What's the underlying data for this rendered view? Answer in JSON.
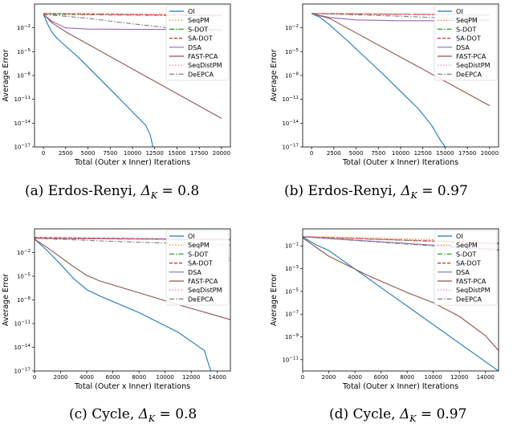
{
  "colors": {
    "OI": "#1f77b4",
    "SeqPM": "#ff7f0e",
    "S-DOT": "#2ca02c",
    "SA-DOT": "#d62728",
    "DSA": "#9467bd",
    "FAST-PCA": "#8c564b",
    "SeqDistPM": "#e377c2",
    "DeEPCA": "#7f7f7f"
  },
  "chart_data": [
    {
      "type": "line",
      "caption_text": "(a) Erdos-Renyi, ",
      "caption_delta": "0.8",
      "xlabel": "Total (Outer x Inner) Iterations",
      "ylabel": "Average Error",
      "yscale": "log",
      "xlim": [
        -1000,
        21000
      ],
      "ylim_exp": [
        -17,
        1
      ],
      "xticks": [
        0,
        2500,
        5000,
        7500,
        10000,
        12500,
        15000,
        17500,
        20000
      ],
      "yticks": [
        "10^-2",
        "10^-5",
        "10^-8",
        "10^-11",
        "10^-14",
        "10^-17"
      ],
      "legend": [
        "OI",
        "SeqPM",
        "S-DOT",
        "SA-DOT",
        "DSA",
        "FAST-PCA",
        "SeqDistPM",
        "DeEPCA"
      ],
      "series": [
        {
          "name": "OI",
          "x": [
            0,
            500,
            1000,
            1500,
            2000,
            4000,
            8000,
            11500,
            12000,
            12300
          ],
          "y": [
            -0.3,
            -1.6,
            -2.6,
            -3.3,
            -3.8,
            -5.8,
            -10.3,
            -14.3,
            -15.5,
            -17
          ]
        },
        {
          "name": "SeqPM",
          "x": [
            0,
            20000
          ],
          "y": [
            -0.15,
            -0.35
          ]
        },
        {
          "name": "S-DOT",
          "x": [
            0,
            20000
          ],
          "y": [
            -0.3,
            -0.5
          ]
        },
        {
          "name": "SA-DOT",
          "x": [
            0,
            20000
          ],
          "y": [
            -0.2,
            -0.45
          ]
        },
        {
          "name": "DSA",
          "x": [
            0,
            1000,
            2500,
            5000,
            10000,
            20000
          ],
          "y": [
            -0.3,
            -1.2,
            -2.0,
            -2.15,
            -2.2,
            -2.2
          ]
        },
        {
          "name": "FAST-PCA",
          "x": [
            0,
            1000,
            2500,
            20000
          ],
          "y": [
            -0.3,
            -1.4,
            -2.5,
            -13.4
          ]
        },
        {
          "name": "SeqDistPM",
          "x": [
            0,
            20000
          ],
          "y": [
            -0.25,
            -0.45
          ]
        },
        {
          "name": "DeEPCA",
          "x": [
            0,
            5000,
            10000,
            15000,
            20000
          ],
          "y": [
            -0.3,
            -0.8,
            -1.5,
            -2.1,
            -2.4
          ]
        }
      ]
    },
    {
      "type": "line",
      "caption_text": "(b) Erdos-Renyi, ",
      "caption_delta": "0.97",
      "xlabel": "Total (Outer x Inner) Iterations",
      "ylabel": "Average Error",
      "yscale": "log",
      "xlim": [
        -1000,
        21000
      ],
      "ylim_exp": [
        -17,
        1
      ],
      "xticks": [
        0,
        2500,
        5000,
        7500,
        10000,
        12500,
        15000,
        17500,
        20000
      ],
      "yticks": [
        "10^-2",
        "10^-5",
        "10^-8",
        "10^-11",
        "10^-14",
        "10^-17"
      ],
      "legend": [
        "OI",
        "SeqPM",
        "S-DOT",
        "SA-DOT",
        "DSA",
        "FAST-PCA",
        "SeqDistPM",
        "DeEPCA"
      ],
      "series": [
        {
          "name": "OI",
          "x": [
            0,
            1000,
            2000,
            4000,
            8000,
            12000,
            13500,
            14500,
            15000
          ],
          "y": [
            -0.2,
            -0.7,
            -1.6,
            -3.6,
            -7.8,
            -12.2,
            -14.3,
            -16.2,
            -17
          ]
        },
        {
          "name": "SeqPM",
          "x": [
            0,
            20000
          ],
          "y": [
            -0.15,
            -0.35
          ]
        },
        {
          "name": "S-DOT",
          "x": [
            0,
            20000
          ],
          "y": [
            -0.2,
            -0.4
          ]
        },
        {
          "name": "SA-DOT",
          "x": [
            0,
            20000
          ],
          "y": [
            -0.2,
            -0.4
          ]
        },
        {
          "name": "DSA",
          "x": [
            0,
            2000,
            5000,
            10000,
            20000
          ],
          "y": [
            -0.2,
            -0.7,
            -1.0,
            -1.1,
            -1.1
          ]
        },
        {
          "name": "FAST-PCA",
          "x": [
            0,
            2000,
            20000
          ],
          "y": [
            -0.2,
            -0.8,
            -11.8
          ]
        },
        {
          "name": "SeqDistPM",
          "x": [
            0,
            20000
          ],
          "y": [
            -0.2,
            -0.4
          ]
        },
        {
          "name": "DeEPCA",
          "x": [
            0,
            5000,
            10000,
            15000,
            20000
          ],
          "y": [
            -0.2,
            -0.35,
            -0.55,
            -0.75,
            -0.95
          ]
        }
      ]
    },
    {
      "type": "line",
      "caption_text": "(c) Cycle, ",
      "caption_delta": "0.8",
      "xlabel": "Total (Outer x Inner) Iterations",
      "ylabel": "Average Error",
      "yscale": "log",
      "xlim": [
        0,
        15000
      ],
      "ylim_exp": [
        -17,
        1
      ],
      "xticks": [
        0,
        2000,
        4000,
        6000,
        8000,
        10000,
        12000,
        14000
      ],
      "yticks": [
        "10^-2",
        "10^-5",
        "10^-8",
        "10^-11",
        "10^-14",
        "10^-17"
      ],
      "legend": [
        "OI",
        "SeqPM",
        "S-DOT",
        "SA-DOT",
        "DSA",
        "FAST-PCA",
        "SeqDistPM",
        "DeEPCA"
      ],
      "series": [
        {
          "name": "OI",
          "x": [
            0,
            1000,
            2000,
            3000,
            4000,
            5000,
            8000,
            11000,
            13000,
            13500
          ],
          "y": [
            -0.3,
            -1.8,
            -3.5,
            -5.3,
            -6.7,
            -7.5,
            -9.6,
            -12.1,
            -14.4,
            -17
          ]
        },
        {
          "name": "SeqPM",
          "x": [
            0,
            14500,
            15000
          ],
          "y": [
            -0.1,
            -0.3,
            -3.2
          ]
        },
        {
          "name": "S-DOT",
          "x": [
            0,
            15000
          ],
          "y": [
            -0.2,
            -0.4
          ]
        },
        {
          "name": "SA-DOT",
          "x": [
            0,
            15000
          ],
          "y": [
            -0.1,
            -0.35
          ]
        },
        {
          "name": "DSA",
          "x": [
            0,
            15000
          ],
          "y": [
            -0.2,
            -0.35
          ]
        },
        {
          "name": "FAST-PCA",
          "x": [
            0,
            1000,
            2000,
            3000,
            4000,
            5000,
            8000,
            11000,
            15000
          ],
          "y": [
            -0.3,
            -1.4,
            -2.6,
            -3.8,
            -4.9,
            -5.6,
            -7.1,
            -8.6,
            -10.5
          ]
        },
        {
          "name": "SeqDistPM",
          "x": [
            0,
            15000
          ],
          "y": [
            -0.2,
            -0.4
          ]
        },
        {
          "name": "DeEPCA",
          "x": [
            0,
            4000,
            8000,
            12000,
            15000
          ],
          "y": [
            -0.2,
            -0.45,
            -0.7,
            -0.9,
            -1.05
          ]
        }
      ]
    },
    {
      "type": "line",
      "caption_text": "(d) Cycle, ",
      "caption_delta": "0.97",
      "xlabel": "Total (Outer x Inner) Iterations",
      "ylabel": "Average Error",
      "yscale": "log",
      "xlim": [
        0,
        15000
      ],
      "ylim_exp": [
        -12,
        0.5
      ],
      "xticks": [
        0,
        2000,
        4000,
        6000,
        8000,
        10000,
        12000,
        14000
      ],
      "yticks": [
        "10^-1",
        "10^-3",
        "10^-5",
        "10^-7",
        "10^-9",
        "10^-11"
      ],
      "legend": [
        "OI",
        "SeqPM",
        "S-DOT",
        "SA-DOT",
        "DSA",
        "FAST-PCA",
        "SeqDistPM",
        "DeEPCA"
      ],
      "series": [
        {
          "name": "OI",
          "x": [
            0,
            1000,
            2000,
            15000
          ],
          "y": [
            -0.2,
            -0.9,
            -1.4,
            -12
          ]
        },
        {
          "name": "SeqPM",
          "x": [
            0,
            12000,
            15000
          ],
          "y": [
            -0.15,
            -0.5,
            -0.9
          ]
        },
        {
          "name": "S-DOT",
          "x": [
            0,
            15000
          ],
          "y": [
            -0.2,
            -0.8
          ]
        },
        {
          "name": "SA-DOT",
          "x": [
            0,
            15000
          ],
          "y": [
            -0.2,
            -0.75
          ]
        },
        {
          "name": "DSA",
          "x": [
            0,
            15000
          ],
          "y": [
            -0.2,
            -1.3
          ]
        },
        {
          "name": "FAST-PCA",
          "x": [
            0,
            2000,
            5000,
            8000,
            10000,
            12000,
            14000,
            15000
          ],
          "y": [
            -0.3,
            -1.9,
            -3.6,
            -5.1,
            -6.0,
            -7.2,
            -8.9,
            -10.2
          ]
        },
        {
          "name": "SeqDistPM",
          "x": [
            0,
            15000
          ],
          "y": [
            -0.2,
            -0.75
          ]
        },
        {
          "name": "DeEPCA",
          "x": [
            0,
            5000,
            10000,
            15000
          ],
          "y": [
            -0.2,
            -0.6,
            -1.0,
            -1.4
          ]
        }
      ]
    }
  ]
}
